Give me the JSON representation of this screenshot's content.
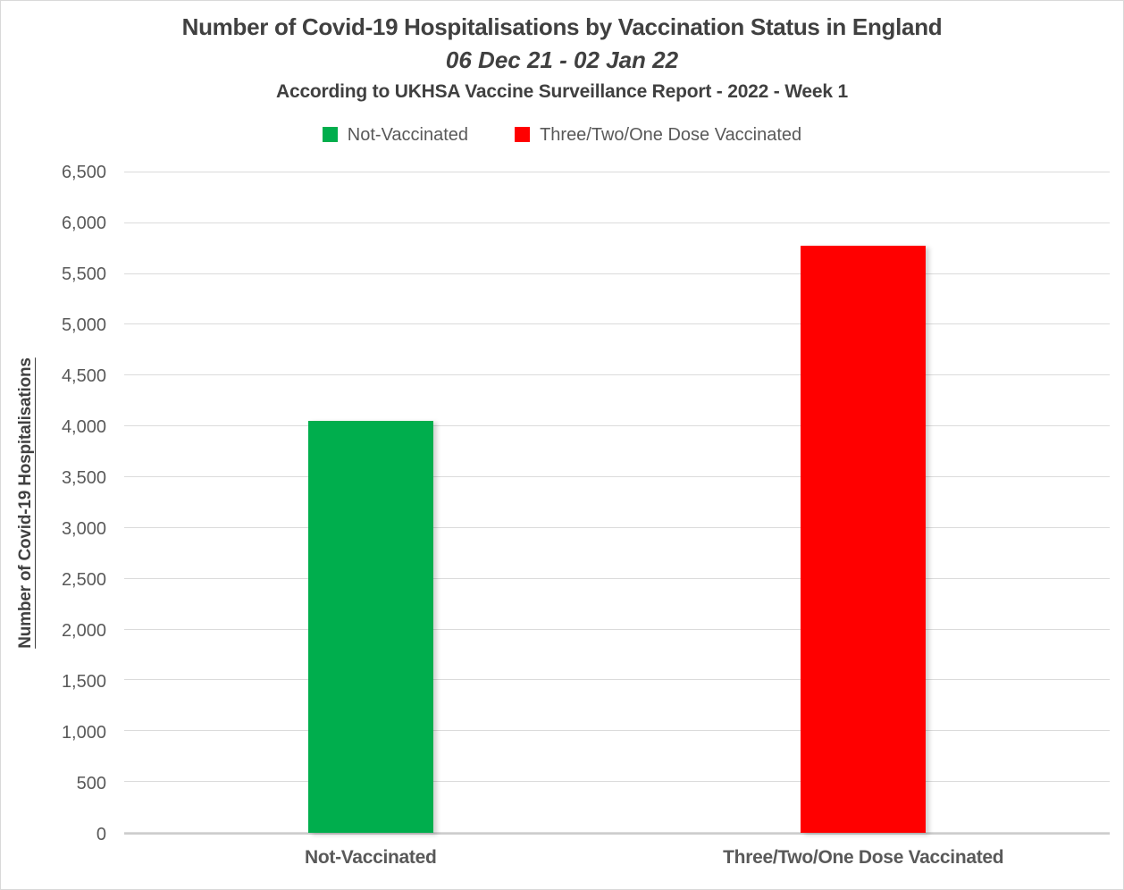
{
  "chart_data": {
    "type": "bar",
    "title": "Number of Covid-19 Hospitalisations by Vaccination Status in England",
    "subtitle": "06 Dec 21 - 02 Jan 22",
    "source_note": "According to UKHSA Vaccine Surveillance Report - 2022 - Week 1",
    "ylabel": "Number of Covid-19 Hospitalisations",
    "xlabel": "",
    "categories": [
      "Not-Vaccinated",
      "Three/Two/One Dose Vaccinated"
    ],
    "series": [
      {
        "name": "Not-Vaccinated",
        "value": 4050,
        "color": "#00AE4D"
      },
      {
        "name": "Three/Two/One Dose Vaccinated",
        "value": 5780,
        "color": "#FF0000"
      }
    ],
    "legend": [
      {
        "label": "Not-Vaccinated",
        "color": "#00AE4D"
      },
      {
        "label": "Three/Two/One Dose Vaccinated",
        "color": "#FF0000"
      }
    ],
    "legend_position": "top",
    "grid": true,
    "ylim": [
      0,
      6500
    ],
    "yticks": [
      {
        "value": 0,
        "label": "0"
      },
      {
        "value": 500,
        "label": "500"
      },
      {
        "value": 1000,
        "label": "1,000"
      },
      {
        "value": 1500,
        "label": "1,500"
      },
      {
        "value": 2000,
        "label": "2,000"
      },
      {
        "value": 2500,
        "label": "2,500"
      },
      {
        "value": 3000,
        "label": "3,000"
      },
      {
        "value": 3500,
        "label": "3,500"
      },
      {
        "value": 4000,
        "label": "4,000"
      },
      {
        "value": 4500,
        "label": "4,500"
      },
      {
        "value": 5000,
        "label": "5,000"
      },
      {
        "value": 5500,
        "label": "5,500"
      },
      {
        "value": 6000,
        "label": "6,000"
      },
      {
        "value": 6500,
        "label": "6,500"
      }
    ]
  },
  "colors": {
    "title_text": "#404040",
    "axis_text": "#595959",
    "gridline": "#DBDBDB",
    "axis_line": "#CDCDCD",
    "background": "#FFFFFF",
    "border": "#D9D9D9"
  }
}
